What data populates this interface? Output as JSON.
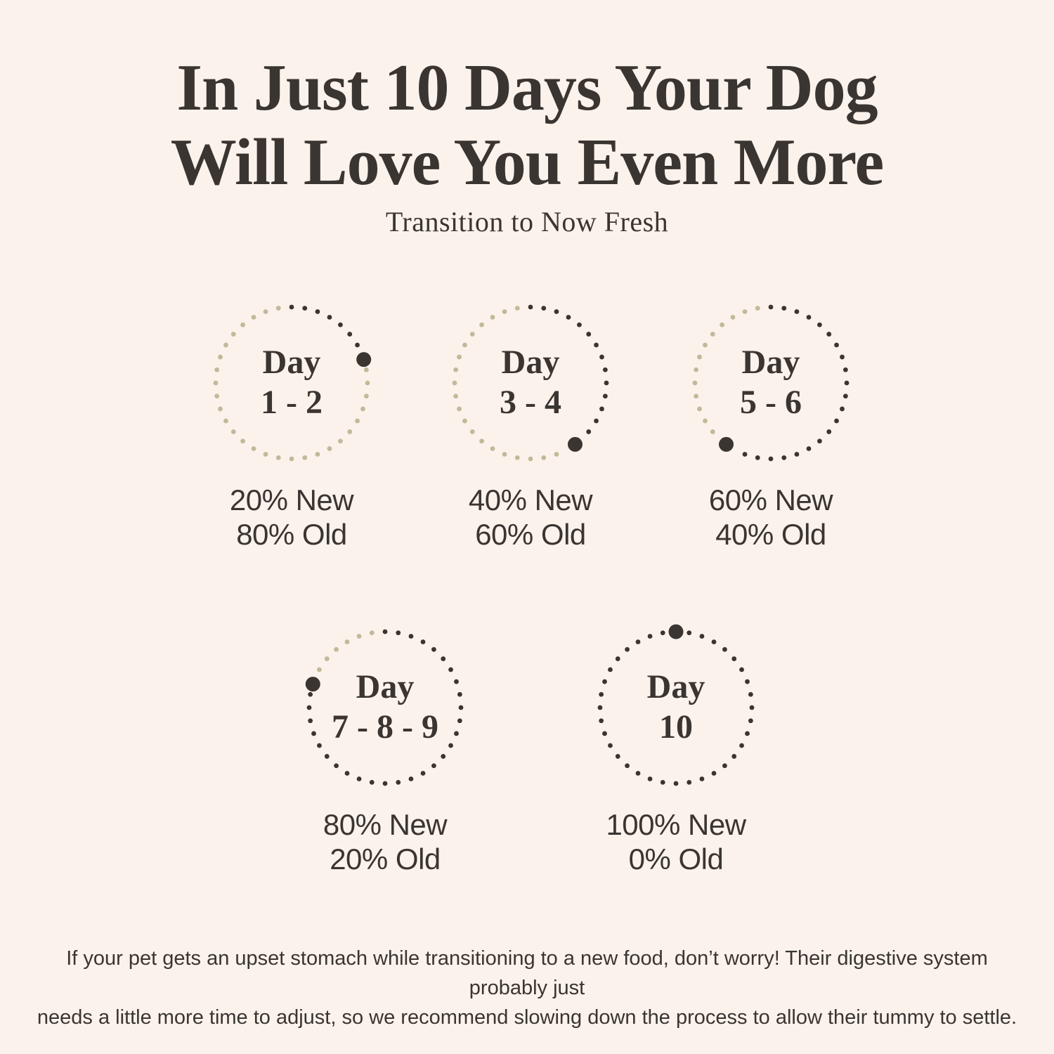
{
  "colors": {
    "background": "#fcf2ec",
    "ink": "#3a3531",
    "dot_new": "#3a3531",
    "dot_old": "#c1b998"
  },
  "header": {
    "title_line1": "In Just 10 Days Your Dog",
    "title_line2": "Will Love You Even More",
    "subtitle": "Transition to Now Fresh"
  },
  "chart_data": {
    "type": "pie",
    "variant": "dotted progress rings showing percent of new food vs old food per transition stage",
    "title": "In Just 10 Days Your Dog Will Love You Even More",
    "subtitle": "Transition to Now Fresh",
    "unit": "%",
    "stages": [
      {
        "day_word": "Day",
        "day_range": "1 - 2",
        "percent_new": 20,
        "percent_old": 80,
        "new_label": "20% New",
        "old_label": "80% Old"
      },
      {
        "day_word": "Day",
        "day_range": "3 - 4",
        "percent_new": 40,
        "percent_old": 60,
        "new_label": "40% New",
        "old_label": "60% Old"
      },
      {
        "day_word": "Day",
        "day_range": "5 - 6",
        "percent_new": 60,
        "percent_old": 40,
        "new_label": "60% New",
        "old_label": "40% Old"
      },
      {
        "day_word": "Day",
        "day_range": "7 - 8 - 9",
        "percent_new": 80,
        "percent_old": 20,
        "new_label": "80% New",
        "old_label": "20% Old"
      },
      {
        "day_word": "Day",
        "day_range": "10",
        "percent_new": 100,
        "percent_old": 0,
        "new_label": "100% New",
        "old_label": "0% Old"
      }
    ],
    "ring": {
      "dot_count": 36,
      "start_angle_deg": 0,
      "direction": "clockwise",
      "marker": "large dot at end of dark (new-food) arc"
    },
    "legend_position": "none",
    "grid": false
  },
  "footer": {
    "line1": "If your pet gets an upset stomach while transitioning to a new food, don’t worry! Their digestive system probably just",
    "line2": "needs a little more time to adjust, so we recommend slowing down the process to allow their tummy to settle."
  }
}
